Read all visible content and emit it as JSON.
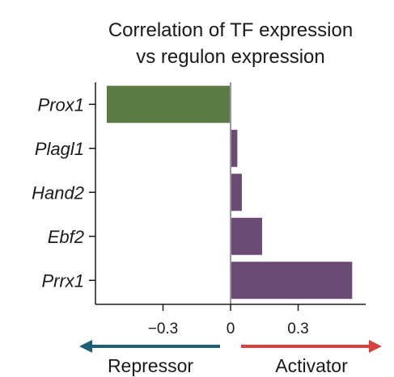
{
  "chart_data": {
    "type": "bar",
    "orientation": "horizontal",
    "title_lines": [
      "Correlation of TF expression",
      "vs regulon expression"
    ],
    "categories": [
      "Prox1",
      "Plagl1",
      "Hand2",
      "Ebf2",
      "Prrx1"
    ],
    "values": [
      -0.55,
      0.03,
      0.05,
      0.14,
      0.54
    ],
    "bar_colors": [
      "#5b7a45",
      "#6a4b73",
      "#6a4b73",
      "#6a4b73",
      "#6a4b73"
    ],
    "xticks": [
      -0.3,
      0,
      0.3
    ],
    "xtick_labels": [
      "−0.3",
      "0",
      "0.3"
    ],
    "xlim": [
      -0.6,
      0.6
    ],
    "zero_line_color": "#9a9a9a",
    "grid": false
  },
  "direction_arrows": {
    "left": {
      "label": "Repressor",
      "color": "#1f5f73"
    },
    "right": {
      "label": "Activator",
      "color": "#d6423e"
    }
  }
}
